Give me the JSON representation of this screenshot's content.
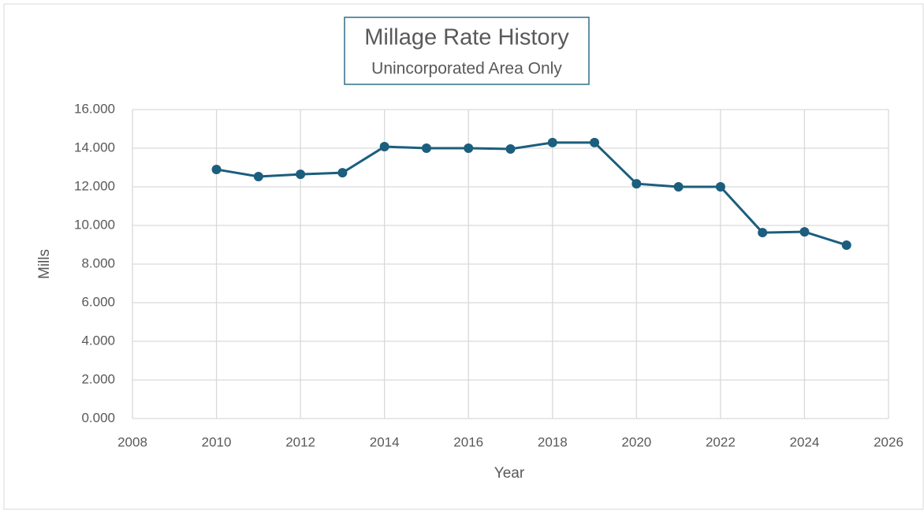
{
  "chart_data": {
    "type": "line",
    "title": "Millage Rate History",
    "subtitle": "Unincorporated Area Only",
    "x_label": "Year",
    "y_label": "Mills",
    "x": [
      2010,
      2011,
      2012,
      2013,
      2014,
      2015,
      2016,
      2017,
      2018,
      2019,
      2020,
      2021,
      2022,
      2023,
      2024,
      2025
    ],
    "series": [
      {
        "name": "Mills",
        "color": "#1b5e7d",
        "values": [
          12.9,
          12.53,
          12.65,
          12.73,
          14.08,
          14.0,
          14.0,
          13.96,
          14.29,
          14.29,
          12.16,
          12.0,
          12.0,
          9.63,
          9.67,
          8.98
        ]
      }
    ],
    "xlim": [
      2008,
      2026
    ],
    "xticks": [
      2008,
      2010,
      2012,
      2014,
      2016,
      2018,
      2020,
      2022,
      2024,
      2026
    ],
    "ylim": [
      0,
      16
    ],
    "yticks": [
      {
        "value": 0,
        "label": "0.000"
      },
      {
        "value": 2,
        "label": "2.000"
      },
      {
        "value": 4,
        "label": "4.000"
      },
      {
        "value": 6,
        "label": "6.000"
      },
      {
        "value": 8,
        "label": "8.000"
      },
      {
        "value": 10,
        "label": "10.000"
      },
      {
        "value": 12,
        "label": "12.000"
      },
      {
        "value": 14,
        "label": "14.000"
      },
      {
        "value": 16,
        "label": "16.000"
      }
    ],
    "grid": true
  }
}
